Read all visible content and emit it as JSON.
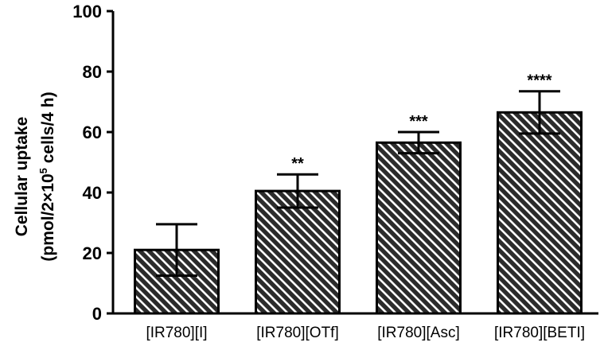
{
  "chart_data": {
    "type": "bar",
    "title": "",
    "ylabel": {
      "line1": "Cellular uptake",
      "line2_pre": "(pmol/2×10",
      "line2_sup": "5",
      "line2_post": " cells/4 h)"
    },
    "categories": [
      "[IR780][I]",
      "[IR780][OTf]",
      "[IR780][Asc]",
      "[IR780][BETI]"
    ],
    "values": [
      21,
      40.5,
      56.5,
      66.5
    ],
    "errors": [
      8.5,
      5.5,
      3.5,
      7
    ],
    "significance": [
      "",
      "**",
      "***",
      "****"
    ],
    "ylim": [
      0,
      100
    ],
    "yticks": [
      0,
      20,
      40,
      60,
      80,
      100
    ],
    "bar_fill": "hatched",
    "bar_color": "#2b2b2b",
    "hatch_color": "#ffffff",
    "grid": false,
    "legend": "none"
  }
}
